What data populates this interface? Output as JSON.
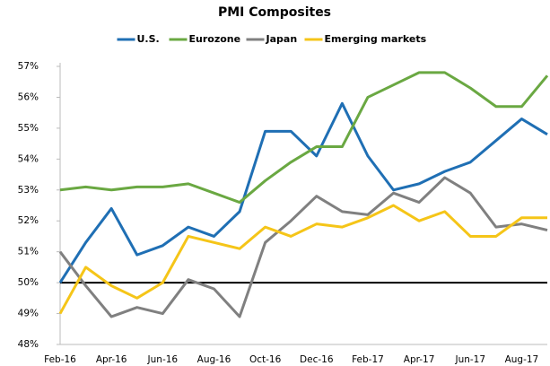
{
  "chart_data": {
    "type": "line",
    "title": "PMI Composites",
    "categories": [
      "Feb-16",
      null,
      "Apr-16",
      null,
      "Jun-16",
      null,
      "Aug-16",
      null,
      "Oct-16",
      null,
      "Dec-16",
      null,
      "Feb-17",
      null,
      "Apr-17",
      null,
      "Jun-17",
      null,
      "Aug-17",
      null
    ],
    "series": [
      {
        "name": "U.S.",
        "color": "#1f6fb4",
        "values": [
          50.0,
          51.3,
          52.4,
          50.9,
          51.2,
          51.8,
          51.5,
          52.3,
          54.9,
          54.9,
          54.1,
          55.8,
          54.1,
          53.0,
          53.2,
          53.6,
          53.9,
          54.6,
          55.3,
          54.8
        ]
      },
      {
        "name": "Eurozone",
        "color": "#6aa842",
        "values": [
          53.0,
          53.1,
          53.0,
          53.1,
          53.1,
          53.2,
          52.9,
          52.6,
          53.3,
          53.9,
          54.4,
          54.4,
          56.0,
          56.4,
          56.8,
          56.8,
          56.3,
          55.7,
          55.7,
          56.7
        ]
      },
      {
        "name": "Japan",
        "color": "#808080",
        "values": [
          51.0,
          49.9,
          48.9,
          49.2,
          49.0,
          50.1,
          49.8,
          48.9,
          51.3,
          52.0,
          52.8,
          52.3,
          52.2,
          52.9,
          52.6,
          53.4,
          52.9,
          51.8,
          51.9,
          51.7
        ]
      },
      {
        "name": "Emerging markets",
        "color": "#f5c518",
        "values": [
          49.0,
          50.5,
          49.9,
          49.5,
          50.0,
          51.5,
          51.3,
          51.1,
          51.8,
          51.5,
          51.9,
          51.8,
          52.1,
          52.5,
          52.0,
          52.3,
          51.5,
          51.5,
          52.1,
          52.1
        ]
      }
    ],
    "ylim": [
      48,
      57
    ],
    "yticks": [
      {
        "value": 48,
        "label": "48%"
      },
      {
        "value": 49,
        "label": "49%"
      },
      {
        "value": 50,
        "label": "50%"
      },
      {
        "value": 51,
        "label": "51%"
      },
      {
        "value": 52,
        "label": "52%"
      },
      {
        "value": 53,
        "label": "53%"
      },
      {
        "value": 54,
        "label": "54%"
      },
      {
        "value": 55,
        "label": "55%"
      },
      {
        "value": 56,
        "label": "56%"
      },
      {
        "value": 57,
        "label": "57%"
      }
    ],
    "reference_line": 50,
    "legend": "top"
  }
}
